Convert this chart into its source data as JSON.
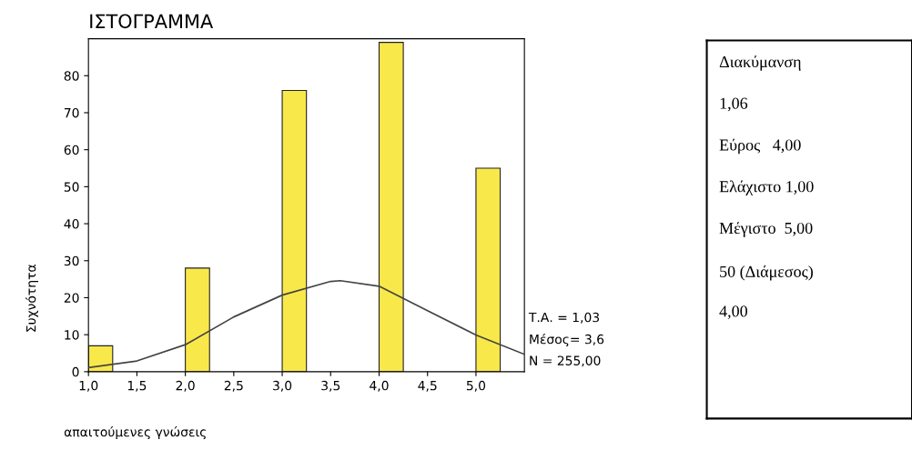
{
  "chart_data": [
    {
      "type": "histogram",
      "title": "ΙΣΤΟΓΡΑΜΜΑ",
      "xlabel": "απαιτούμενες γνώσεις",
      "ylabel": "Συχνότητα",
      "bins": [
        1.0,
        1.25,
        2.0,
        2.25,
        3.0,
        3.25,
        4.0,
        4.25,
        5.0,
        5.25
      ],
      "values": [
        7,
        0,
        28,
        0,
        76,
        0,
        89,
        0,
        55
      ],
      "color": "#f9e84a",
      "series": [
        {
          "type": "line",
          "color": "#444444",
          "x": [
            1.0,
            1.5,
            2.0,
            2.5,
            3.0,
            3.5,
            3.6,
            4.0,
            4.5,
            5.0,
            5.5
          ],
          "values": [
            1.1,
            2.9,
            7.3,
            14.8,
            20.7,
            24.4,
            24.6,
            23.1,
            16.5,
            9.9,
            4.7
          ]
        }
      ],
      "xlim": [
        1.0,
        5.5
      ],
      "ylim": [
        0,
        90
      ],
      "xticks": [
        {
          "value": 1.0,
          "label": "1,0"
        },
        {
          "value": 1.5,
          "label": "1,5"
        },
        {
          "value": 2.0,
          "label": "2,0"
        },
        {
          "value": 2.5,
          "label": "2,5"
        },
        {
          "value": 3.0,
          "label": "3,0"
        },
        {
          "value": 3.5,
          "label": "3,5"
        },
        {
          "value": 4.0,
          "label": "4,0"
        },
        {
          "value": 4.5,
          "label": "4,5"
        },
        {
          "value": 5.0,
          "label": "5,0"
        }
      ],
      "yticks": [
        0,
        10,
        20,
        30,
        40,
        50,
        60,
        70,
        80
      ],
      "grid": false,
      "annotations": [
        "Τ.Α. = 1,03",
        "Μέσος= 3,6",
        "N = 255,00"
      ]
    },
    {
      "type": "other",
      "annotations": [
        "Διακύμανση",
        "1,06",
        "Εύρος   4,00",
        "Ελάχιστο 1,00",
        "Μέγιστο  5,00",
        "50 (Διάμεσος)",
        "4,00"
      ]
    }
  ]
}
